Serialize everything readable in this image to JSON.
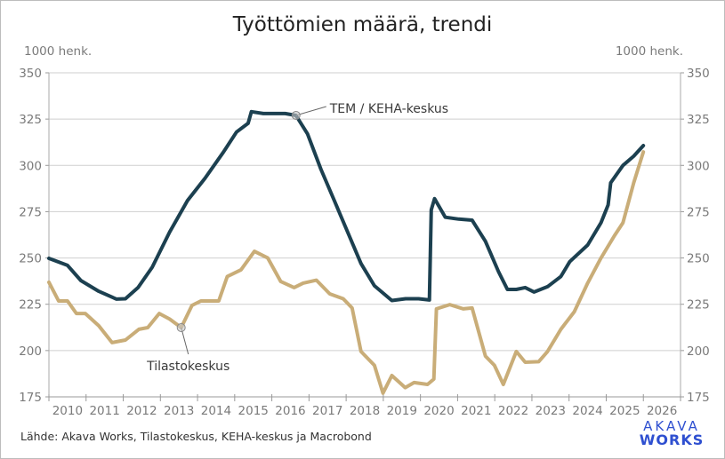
{
  "chart_data": {
    "type": "line",
    "title": "Työttömien määrä, trendi",
    "ylabel_left": "1000 henk.",
    "ylabel_right": "1000 henk.",
    "xlabel": "",
    "xlim": [
      2010,
      2027
    ],
    "ylim": [
      175,
      350
    ],
    "yticks": [
      175,
      200,
      225,
      250,
      275,
      300,
      325,
      350
    ],
    "xtick_labels": [
      "2010",
      "2011",
      "2012",
      "2013",
      "2014",
      "2015",
      "2016",
      "2017",
      "2018",
      "2019",
      "2020",
      "2021",
      "2022",
      "2023",
      "2024",
      "2025",
      "2026"
    ],
    "grid": true,
    "series": [
      {
        "name": "TEM / KEHA-keskus",
        "color": "#1c4050",
        "annotation_at": [
          2016.65,
          327
        ],
        "points": [
          [
            2010.0,
            249.8
          ],
          [
            2010.5,
            246
          ],
          [
            2010.86,
            237.8
          ],
          [
            2011.34,
            232
          ],
          [
            2011.82,
            227.8
          ],
          [
            2012.06,
            228
          ],
          [
            2012.4,
            234
          ],
          [
            2012.78,
            245
          ],
          [
            2013.25,
            264
          ],
          [
            2013.73,
            281
          ],
          [
            2014.2,
            293
          ],
          [
            2014.69,
            307
          ],
          [
            2015.05,
            318
          ],
          [
            2015.36,
            322.7
          ],
          [
            2015.45,
            329
          ],
          [
            2015.77,
            328
          ],
          [
            2016.36,
            328
          ],
          [
            2016.65,
            327
          ],
          [
            2016.96,
            317
          ],
          [
            2017.32,
            298
          ],
          [
            2017.68,
            281
          ],
          [
            2018.04,
            264
          ],
          [
            2018.4,
            247
          ],
          [
            2018.76,
            235
          ],
          [
            2019.23,
            227
          ],
          [
            2019.6,
            228
          ],
          [
            2019.95,
            228
          ],
          [
            2020.24,
            227.3
          ],
          [
            2020.29,
            276
          ],
          [
            2020.38,
            282
          ],
          [
            2020.67,
            272
          ],
          [
            2021.03,
            271
          ],
          [
            2021.39,
            270.4
          ],
          [
            2021.75,
            259
          ],
          [
            2022.1,
            242.6
          ],
          [
            2022.34,
            233
          ],
          [
            2022.58,
            233
          ],
          [
            2022.82,
            234
          ],
          [
            2023.06,
            231.6
          ],
          [
            2023.42,
            234.5
          ],
          [
            2023.78,
            240
          ],
          [
            2024.02,
            248
          ],
          [
            2024.5,
            257
          ],
          [
            2024.86,
            269
          ],
          [
            2025.05,
            278.6
          ],
          [
            2025.12,
            290.6
          ],
          [
            2025.45,
            300
          ],
          [
            2025.74,
            305
          ],
          [
            2026.0,
            310.7
          ]
        ]
      },
      {
        "name": "Tilastokeskus",
        "color": "#c9ad78",
        "annotation_at": [
          2013.56,
          212.4
        ],
        "points": [
          [
            2010.0,
            236.9
          ],
          [
            2010.26,
            226.8
          ],
          [
            2010.5,
            226.8
          ],
          [
            2010.74,
            220
          ],
          [
            2010.98,
            220
          ],
          [
            2011.34,
            213.4
          ],
          [
            2011.7,
            204.3
          ],
          [
            2012.06,
            205.7
          ],
          [
            2012.42,
            211.5
          ],
          [
            2012.66,
            212.4
          ],
          [
            2012.97,
            220
          ],
          [
            2013.25,
            217
          ],
          [
            2013.56,
            212.4
          ],
          [
            2013.85,
            224.4
          ],
          [
            2014.09,
            226.8
          ],
          [
            2014.57,
            226.8
          ],
          [
            2014.8,
            240
          ],
          [
            2015.17,
            243.6
          ],
          [
            2015.53,
            253.6
          ],
          [
            2015.89,
            250
          ],
          [
            2016.24,
            237.3
          ],
          [
            2016.6,
            234
          ],
          [
            2016.84,
            236.4
          ],
          [
            2017.2,
            238
          ],
          [
            2017.56,
            230.6
          ],
          [
            2017.92,
            228
          ],
          [
            2018.16,
            223
          ],
          [
            2018.4,
            199.5
          ],
          [
            2018.76,
            192
          ],
          [
            2018.99,
            177
          ],
          [
            2019.23,
            186.5
          ],
          [
            2019.59,
            180
          ],
          [
            2019.83,
            182.7
          ],
          [
            2020.19,
            181.7
          ],
          [
            2020.36,
            184.6
          ],
          [
            2020.43,
            222.5
          ],
          [
            2020.79,
            224.8
          ],
          [
            2021.15,
            222.5
          ],
          [
            2021.39,
            223
          ],
          [
            2021.75,
            197
          ],
          [
            2021.99,
            192
          ],
          [
            2022.23,
            181.7
          ],
          [
            2022.58,
            199.5
          ],
          [
            2022.82,
            193.7
          ],
          [
            2023.18,
            194
          ],
          [
            2023.42,
            199.5
          ],
          [
            2023.78,
            211.5
          ],
          [
            2024.14,
            221
          ],
          [
            2024.5,
            236.4
          ],
          [
            2024.86,
            250
          ],
          [
            2025.22,
            262
          ],
          [
            2025.45,
            269
          ],
          [
            2025.74,
            290.6
          ],
          [
            2026.0,
            307.3
          ]
        ]
      }
    ]
  },
  "footer": {
    "source": "Lähde: Akava Works, Tilastokeskus, KEHA-keskus ja Macrobond",
    "logo_line1": "AKAVA",
    "logo_line2": "WORKS"
  }
}
